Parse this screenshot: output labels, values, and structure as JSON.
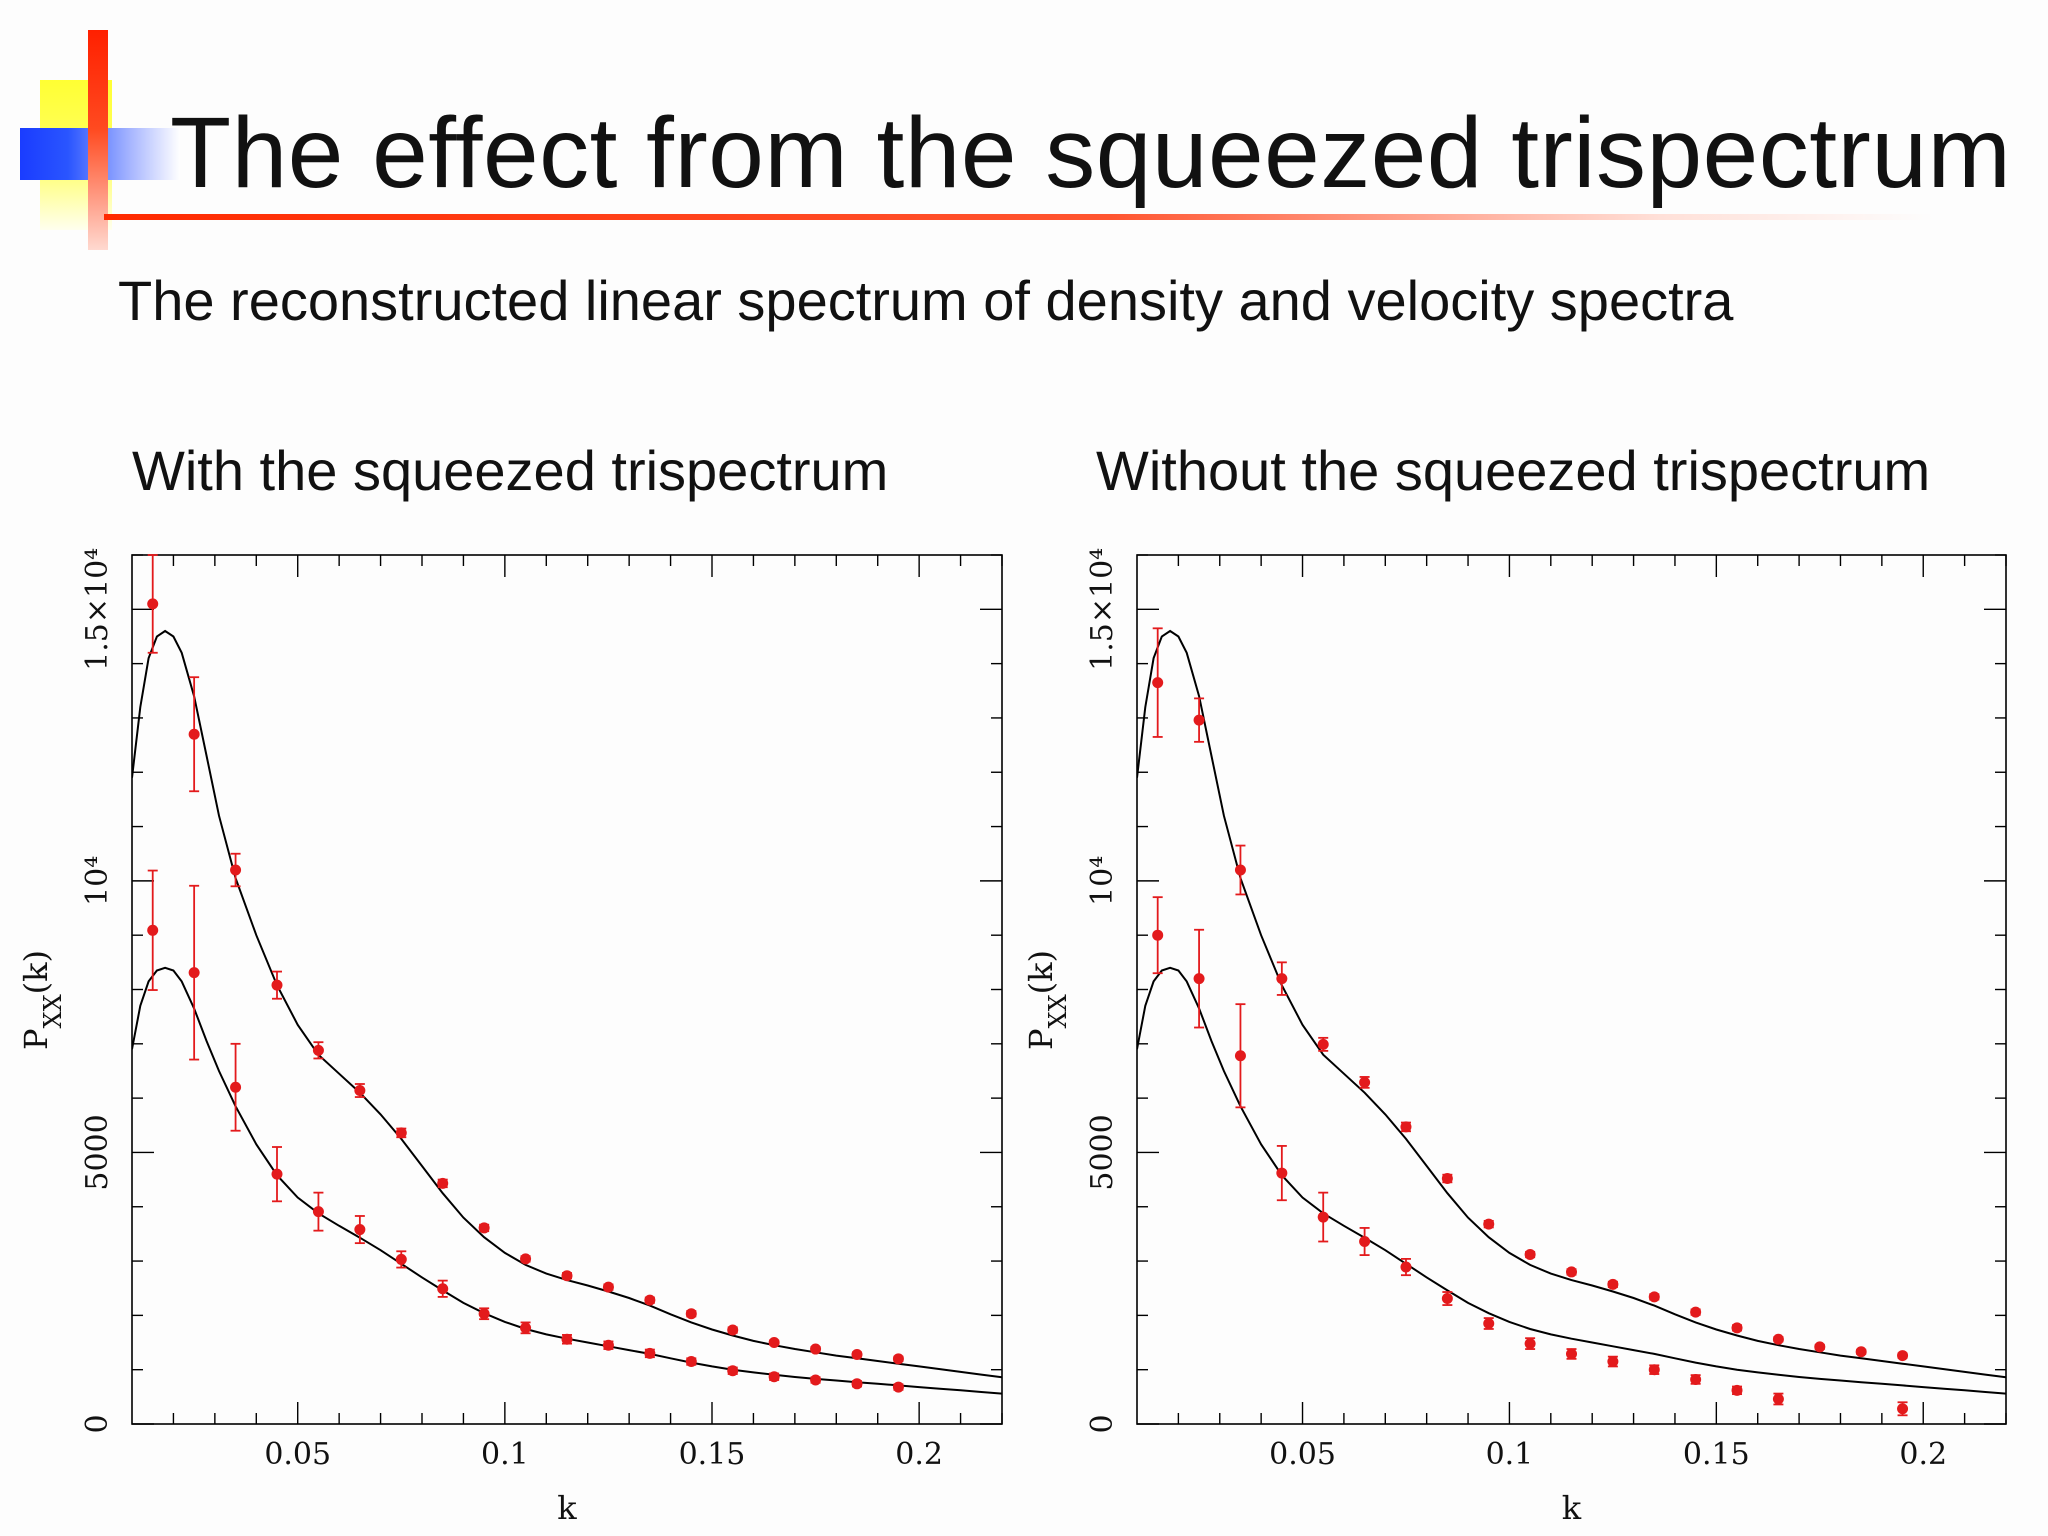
{
  "slide": {
    "title": "The effect from the squeezed trispectrum",
    "subtitle": "The reconstructed linear spectrum of density and velocity spectra"
  },
  "colors": {
    "points": "#e31a1c",
    "curves": "#000000",
    "accent_red": "#ff2a00",
    "accent_blue": "#1a3cff",
    "accent_yellow": "#ffff33"
  },
  "panels": {
    "left_title": "With the squeezed trispectrum",
    "right_title": "Without the squeezed trispectrum"
  },
  "chart_data": [
    {
      "type": "scatter",
      "title": "With the squeezed trispectrum",
      "xlabel": "k",
      "ylabel": "P_XX(k)",
      "xlim": [
        0.01,
        0.22
      ],
      "ylim": [
        0,
        16000
      ],
      "x_ticks": [
        {
          "value": 0.05,
          "label": "0.05"
        },
        {
          "value": 0.1,
          "label": "0.1"
        },
        {
          "value": 0.15,
          "label": "0.15"
        },
        {
          "value": 0.2,
          "label": "0.2"
        }
      ],
      "y_ticks": [
        {
          "value": 0,
          "label": "0"
        },
        {
          "value": 5000,
          "label": "5000"
        },
        {
          "value": 10000,
          "label": "10⁴"
        },
        {
          "value": 15000,
          "label": "1.5×10⁴"
        }
      ],
      "series": [
        {
          "x": [
            0.015,
            0.025,
            0.035,
            0.045,
            0.055,
            0.065,
            0.075,
            0.085,
            0.095,
            0.105,
            0.115,
            0.125,
            0.135,
            0.145,
            0.155,
            0.165,
            0.175,
            0.185,
            0.195
          ],
          "y": [
            15100,
            12700,
            10200,
            8080,
            6880,
            6140,
            5360,
            4430,
            3610,
            3040,
            2730,
            2520,
            2280,
            2030,
            1730,
            1500,
            1380,
            1280,
            1200
          ],
          "err": [
            900,
            1050,
            300,
            250,
            150,
            120,
            80,
            70,
            60,
            50,
            50,
            50,
            50,
            50,
            50,
            40,
            40,
            40,
            40
          ]
        },
        {
          "x": [
            0.015,
            0.025,
            0.035,
            0.045,
            0.055,
            0.065,
            0.075,
            0.085,
            0.095,
            0.105,
            0.115,
            0.125,
            0.135,
            0.145,
            0.155,
            0.165,
            0.175,
            0.185,
            0.195
          ],
          "y": [
            9090,
            8310,
            6200,
            4600,
            3910,
            3580,
            3030,
            2490,
            2030,
            1770,
            1560,
            1450,
            1300,
            1150,
            980,
            870,
            810,
            740,
            680
          ],
          "err": [
            1100,
            1600,
            800,
            500,
            350,
            250,
            150,
            150,
            100,
            100,
            80,
            70,
            70,
            60,
            60,
            60,
            50,
            50,
            50
          ]
        }
      ],
      "curves": [
        {
          "x": [
            0.01,
            0.012,
            0.014,
            0.016,
            0.018,
            0.02,
            0.022,
            0.025,
            0.028,
            0.031,
            0.035,
            0.04,
            0.045,
            0.05,
            0.055,
            0.06,
            0.065,
            0.07,
            0.075,
            0.08,
            0.085,
            0.09,
            0.095,
            0.1,
            0.105,
            0.11,
            0.115,
            0.12,
            0.125,
            0.13,
            0.135,
            0.14,
            0.145,
            0.15,
            0.155,
            0.16,
            0.165,
            0.17,
            0.175,
            0.18,
            0.185,
            0.19,
            0.195,
            0.2,
            0.205,
            0.21,
            0.215,
            0.22
          ],
          "y": [
            11900,
            13200,
            14100,
            14500,
            14600,
            14500,
            14200,
            13400,
            12300,
            11200,
            10050,
            9000,
            8080,
            7350,
            6800,
            6450,
            6100,
            5700,
            5250,
            4750,
            4250,
            3800,
            3440,
            3150,
            2930,
            2770,
            2650,
            2550,
            2440,
            2320,
            2180,
            2020,
            1870,
            1740,
            1630,
            1530,
            1450,
            1380,
            1320,
            1260,
            1210,
            1160,
            1110,
            1060,
            1010,
            960,
            910,
            860
          ]
        },
        {
          "x": [
            0.01,
            0.012,
            0.014,
            0.016,
            0.018,
            0.02,
            0.022,
            0.025,
            0.028,
            0.031,
            0.035,
            0.04,
            0.045,
            0.05,
            0.055,
            0.06,
            0.065,
            0.07,
            0.075,
            0.08,
            0.085,
            0.09,
            0.095,
            0.1,
            0.105,
            0.11,
            0.115,
            0.12,
            0.125,
            0.13,
            0.135,
            0.14,
            0.145,
            0.15,
            0.155,
            0.16,
            0.165,
            0.17,
            0.175,
            0.18,
            0.185,
            0.19,
            0.195,
            0.2,
            0.205,
            0.21,
            0.215,
            0.22
          ],
          "y": [
            6900,
            7700,
            8150,
            8350,
            8400,
            8350,
            8150,
            7650,
            7050,
            6500,
            5850,
            5150,
            4580,
            4170,
            3880,
            3650,
            3430,
            3200,
            2950,
            2700,
            2460,
            2230,
            2040,
            1880,
            1750,
            1650,
            1570,
            1500,
            1430,
            1360,
            1290,
            1210,
            1130,
            1060,
            1000,
            950,
            905,
            865,
            830,
            800,
            770,
            740,
            710,
            680,
            650,
            620,
            590,
            560
          ]
        }
      ]
    },
    {
      "type": "scatter",
      "title": "Without the squeezed trispectrum",
      "xlabel": "k",
      "ylabel": "P_XX(k)",
      "xlim": [
        0.01,
        0.22
      ],
      "ylim": [
        0,
        16000
      ],
      "x_ticks": [
        {
          "value": 0.05,
          "label": "0.05"
        },
        {
          "value": 0.1,
          "label": "0.1"
        },
        {
          "value": 0.15,
          "label": "0.15"
        },
        {
          "value": 0.2,
          "label": "0.2"
        }
      ],
      "y_ticks": [
        {
          "value": 0,
          "label": "0"
        },
        {
          "value": 5000,
          "label": "5000"
        },
        {
          "value": 10000,
          "label": "10⁴"
        },
        {
          "value": 15000,
          "label": "1.5×10⁴"
        }
      ],
      "series": [
        {
          "x": [
            0.015,
            0.025,
            0.035,
            0.045,
            0.055,
            0.065,
            0.075,
            0.085,
            0.095,
            0.105,
            0.115,
            0.125,
            0.135,
            0.145,
            0.155,
            0.165,
            0.175,
            0.185,
            0.195
          ],
          "y": [
            13650,
            12960,
            10200,
            8200,
            6990,
            6290,
            5470,
            4520,
            3680,
            3120,
            2800,
            2570,
            2340,
            2060,
            1770,
            1560,
            1420,
            1330,
            1260
          ],
          "err": [
            1000,
            400,
            450,
            300,
            120,
            100,
            80,
            70,
            60,
            50,
            50,
            50,
            50,
            50,
            50,
            40,
            40,
            40,
            40
          ]
        },
        {
          "x": [
            0.015,
            0.025,
            0.035,
            0.045,
            0.055,
            0.065,
            0.075,
            0.085,
            0.095,
            0.105,
            0.115,
            0.125,
            0.135,
            0.145,
            0.155,
            0.165,
            0.195
          ],
          "y": [
            9000,
            8200,
            6780,
            4620,
            3810,
            3360,
            2890,
            2310,
            1850,
            1480,
            1290,
            1150,
            1000,
            820,
            620,
            460,
            280
          ],
          "err": [
            700,
            900,
            950,
            500,
            450,
            250,
            150,
            120,
            100,
            100,
            90,
            90,
            80,
            80,
            70,
            100,
            120
          ]
        }
      ],
      "curves": [
        {
          "x": [
            0.01,
            0.012,
            0.014,
            0.016,
            0.018,
            0.02,
            0.022,
            0.025,
            0.028,
            0.031,
            0.035,
            0.04,
            0.045,
            0.05,
            0.055,
            0.06,
            0.065,
            0.07,
            0.075,
            0.08,
            0.085,
            0.09,
            0.095,
            0.1,
            0.105,
            0.11,
            0.115,
            0.12,
            0.125,
            0.13,
            0.135,
            0.14,
            0.145,
            0.15,
            0.155,
            0.16,
            0.165,
            0.17,
            0.175,
            0.18,
            0.185,
            0.19,
            0.195,
            0.2,
            0.205,
            0.21,
            0.215,
            0.22
          ],
          "y": [
            11900,
            13200,
            14100,
            14500,
            14600,
            14500,
            14200,
            13400,
            12300,
            11200,
            10050,
            9000,
            8080,
            7350,
            6800,
            6450,
            6100,
            5700,
            5250,
            4750,
            4250,
            3800,
            3440,
            3150,
            2930,
            2770,
            2650,
            2550,
            2440,
            2320,
            2180,
            2020,
            1870,
            1740,
            1630,
            1530,
            1450,
            1380,
            1320,
            1260,
            1210,
            1160,
            1110,
            1060,
            1010,
            960,
            910,
            860
          ]
        },
        {
          "x": [
            0.01,
            0.012,
            0.014,
            0.016,
            0.018,
            0.02,
            0.022,
            0.025,
            0.028,
            0.031,
            0.035,
            0.04,
            0.045,
            0.05,
            0.055,
            0.06,
            0.065,
            0.07,
            0.075,
            0.08,
            0.085,
            0.09,
            0.095,
            0.1,
            0.105,
            0.11,
            0.115,
            0.12,
            0.125,
            0.13,
            0.135,
            0.14,
            0.145,
            0.15,
            0.155,
            0.16,
            0.165,
            0.17,
            0.175,
            0.18,
            0.185,
            0.19,
            0.195,
            0.2,
            0.205,
            0.21,
            0.215,
            0.22
          ],
          "y": [
            6900,
            7700,
            8150,
            8350,
            8400,
            8350,
            8150,
            7650,
            7050,
            6500,
            5850,
            5150,
            4580,
            4170,
            3880,
            3650,
            3430,
            3200,
            2950,
            2700,
            2460,
            2230,
            2040,
            1880,
            1750,
            1650,
            1570,
            1500,
            1430,
            1360,
            1290,
            1210,
            1130,
            1060,
            1000,
            950,
            905,
            865,
            830,
            800,
            770,
            740,
            710,
            680,
            650,
            620,
            590,
            560
          ]
        }
      ]
    }
  ]
}
